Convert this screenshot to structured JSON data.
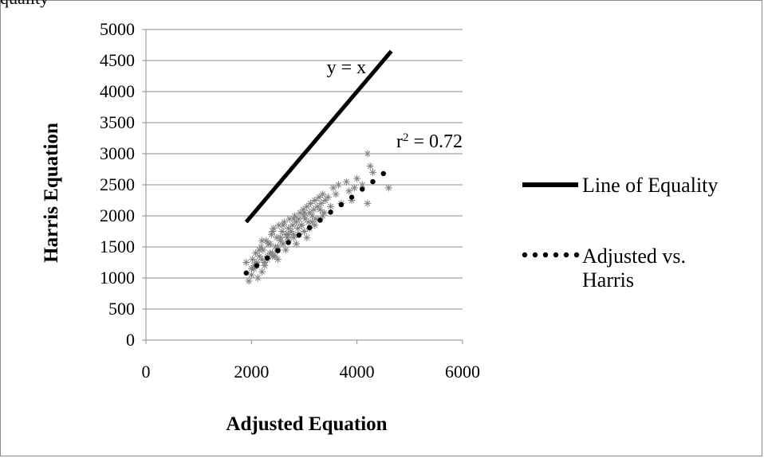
{
  "page": {
    "top_fragment": "quality"
  },
  "chart_data": {
    "type": "scatter",
    "xlabel": "Adjusted Equation",
    "ylabel": "Harris Equation",
    "xlim": [
      0,
      6000
    ],
    "ylim": [
      0,
      5000
    ],
    "x_ticks": [
      0,
      2000,
      4000,
      6000
    ],
    "y_ticks": [
      0,
      500,
      1000,
      1500,
      2000,
      2500,
      3000,
      3500,
      4000,
      4500,
      5000
    ],
    "grid": "horizontal",
    "legend_position": "right",
    "series": [
      {
        "name": "Line of Equality",
        "kind": "line",
        "style": "solid",
        "color": "#000000",
        "x": [
          1900,
          4650
        ],
        "y": [
          1900,
          4650
        ]
      },
      {
        "name": "Adjusted vs. Harris",
        "kind": "trendline",
        "style": "dotted",
        "color": "#000000",
        "x": [
          1900,
          2100,
          2300,
          2500,
          2700,
          2900,
          3100,
          3300,
          3500,
          3700,
          3900,
          4100,
          4300,
          4500
        ],
        "y": [
          1080,
          1200,
          1320,
          1440,
          1570,
          1690,
          1810,
          1930,
          2060,
          2180,
          2300,
          2430,
          2550,
          2680
        ]
      },
      {
        "name": "data-points",
        "kind": "scatter",
        "marker": "asterisk",
        "color": "#808080",
        "x": [
          1900,
          1950,
          2000,
          2020,
          2050,
          2080,
          2100,
          2120,
          2150,
          2180,
          2200,
          2220,
          2250,
          2280,
          2300,
          2320,
          2350,
          2380,
          2400,
          2420,
          2450,
          2480,
          2500,
          2520,
          2550,
          2580,
          2600,
          2620,
          2650,
          2680,
          2700,
          2720,
          2750,
          2780,
          2800,
          2820,
          2850,
          2880,
          2900,
          2920,
          2950,
          2980,
          3000,
          3020,
          3050,
          3080,
          3100,
          3120,
          3150,
          3180,
          3200,
          3220,
          3250,
          3280,
          3300,
          3320,
          3350,
          3380,
          3400,
          3450,
          3500,
          3550,
          3600,
          3650,
          3700,
          3800,
          3850,
          3900,
          3950,
          4000,
          4100,
          4200,
          4200,
          4250,
          4300,
          4600,
          2000,
          2100,
          2200,
          2300,
          2400,
          2500,
          2600,
          2700,
          2800,
          2900,
          3000,
          3100,
          3200,
          3300,
          2150,
          2350,
          2550,
          2750,
          2950,
          3150,
          3350,
          2250,
          2450,
          2650,
          2850,
          3050,
          2050,
          2600,
          2400,
          2800,
          3000,
          2200,
          2700,
          2500
        ],
        "y": [
          1250,
          950,
          1050,
          1300,
          1150,
          1400,
          1200,
          1000,
          1350,
          1500,
          1100,
          1450,
          1250,
          1600,
          1300,
          1550,
          1400,
          1700,
          1350,
          1800,
          1500,
          1650,
          1450,
          1850,
          1600,
          1750,
          1550,
          1900,
          1700,
          1650,
          1800,
          1950,
          1750,
          1850,
          1700,
          2000,
          1900,
          1800,
          1950,
          2050,
          1850,
          2100,
          2000,
          1950,
          2150,
          1900,
          2050,
          2200,
          2000,
          2100,
          2250,
          1950,
          2150,
          2300,
          2100,
          2200,
          2350,
          2050,
          2250,
          2300,
          2150,
          2450,
          2350,
          2500,
          2200,
          2550,
          2400,
          2250,
          2450,
          2600,
          2500,
          2200,
          3000,
          2800,
          2700,
          2450,
          1150,
          1250,
          1300,
          1350,
          1400,
          1500,
          1550,
          1600,
          1650,
          1700,
          1750,
          1800,
          1850,
          1950,
          1450,
          1550,
          1650,
          1750,
          1850,
          1900,
          2000,
          1200,
          1350,
          1450,
          1550,
          1650,
          1200,
          1850,
          1750,
          1950,
          2050,
          1600,
          1700,
          1300
        ]
      }
    ],
    "annotations": [
      {
        "text": "y = x",
        "x": 3500,
        "y": 4400
      },
      {
        "text_base": "r",
        "text_sup": "2",
        "text_rest": " = 0.72",
        "x": 4700,
        "y": 3100
      }
    ]
  }
}
